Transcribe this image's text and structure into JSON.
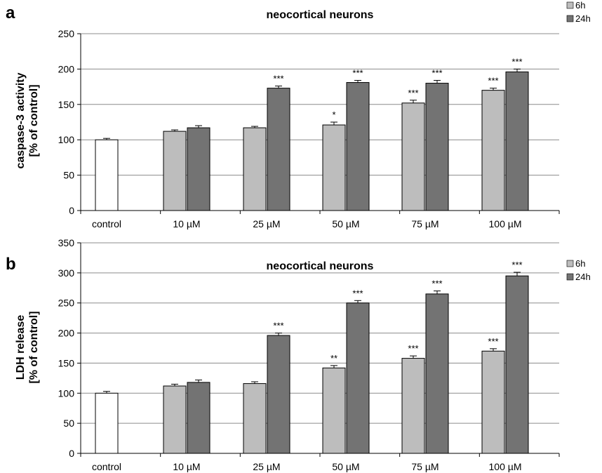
{
  "chart_data": [
    {
      "panel_label": "a",
      "type": "bar",
      "title": "neocortical neurons",
      "ylabel_lines": [
        "caspase-3 activity",
        "[% of control]"
      ],
      "xlabel": "",
      "ylim": [
        0,
        250
      ],
      "yticks": [
        0,
        50,
        100,
        150,
        200,
        250
      ],
      "grid": true,
      "legend_position": "top-right",
      "categories": [
        "control",
        "10 µM",
        "25 µM",
        "50 µM",
        "75 µM",
        "100 µM"
      ],
      "control": {
        "value": 100,
        "error": 2
      },
      "series": [
        {
          "name": "6h",
          "color": "#bdbdbd",
          "values": [
            null,
            112,
            117,
            121,
            152,
            170
          ],
          "errors": [
            null,
            2,
            2,
            4,
            4,
            3
          ],
          "sig": [
            null,
            "",
            "",
            "*",
            "***",
            "***"
          ]
        },
        {
          "name": "24h",
          "color": "#737373",
          "values": [
            null,
            117,
            173,
            181,
            180,
            196
          ],
          "errors": [
            null,
            3,
            3,
            3,
            4,
            4
          ],
          "sig": [
            null,
            "",
            "***",
            "***",
            "***",
            "***"
          ]
        }
      ]
    },
    {
      "panel_label": "b",
      "type": "bar",
      "title": "neocortical neurons",
      "ylabel_lines": [
        "LDH release",
        "[% of control]"
      ],
      "xlabel": "",
      "ylim": [
        0,
        350
      ],
      "yticks": [
        0,
        50,
        100,
        150,
        200,
        250,
        300,
        350
      ],
      "grid": true,
      "legend_position": "top-right",
      "categories": [
        "control",
        "10 µM",
        "25 µM",
        "50 µM",
        "75 µM",
        "100 µM"
      ],
      "control": {
        "value": 100,
        "error": 3
      },
      "series": [
        {
          "name": "6h",
          "color": "#bdbdbd",
          "values": [
            null,
            112,
            116,
            142,
            158,
            170
          ],
          "errors": [
            null,
            3,
            3,
            4,
            4,
            4
          ],
          "sig": [
            null,
            "",
            "",
            "**",
            "***",
            "***"
          ]
        },
        {
          "name": "24h",
          "color": "#737373",
          "values": [
            null,
            118,
            196,
            250,
            265,
            295
          ],
          "errors": [
            null,
            4,
            4,
            4,
            5,
            6
          ],
          "sig": [
            null,
            "",
            "***",
            "***",
            "***",
            "***"
          ]
        }
      ]
    }
  ]
}
